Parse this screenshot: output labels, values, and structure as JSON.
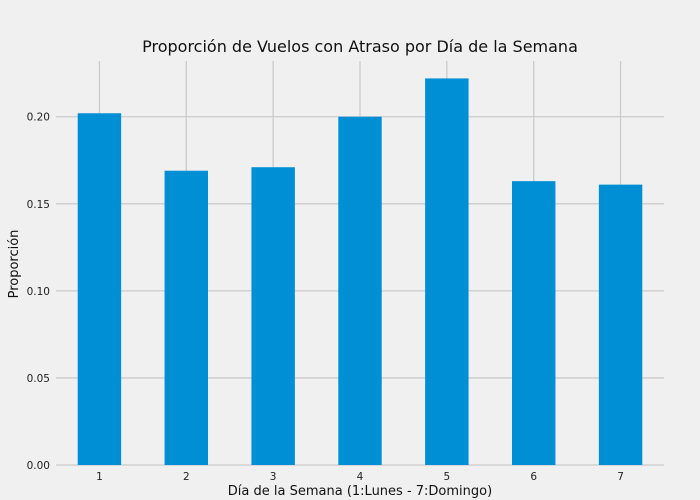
{
  "chart_data": {
    "type": "bar",
    "title": "Proporción de Vuelos con Atraso por Día de la Semana",
    "xlabel": "Día de la Semana (1:Lunes - 7:Domingo)",
    "ylabel": "Proporción",
    "categories": [
      "1",
      "2",
      "3",
      "4",
      "5",
      "6",
      "7"
    ],
    "values": [
      0.202,
      0.169,
      0.171,
      0.2,
      0.222,
      0.163,
      0.161
    ],
    "ylim": [
      0,
      0.232
    ],
    "yticks": [
      0.0,
      0.05,
      0.1,
      0.15,
      0.2
    ],
    "ytick_labels": [
      "0.00",
      "0.05",
      "0.10",
      "0.15",
      "0.20"
    ],
    "grid": true,
    "legend": "none",
    "colors": {
      "bar": "#008fd5",
      "background": "#f0f0f0",
      "grid": "#cbcbcb"
    }
  }
}
